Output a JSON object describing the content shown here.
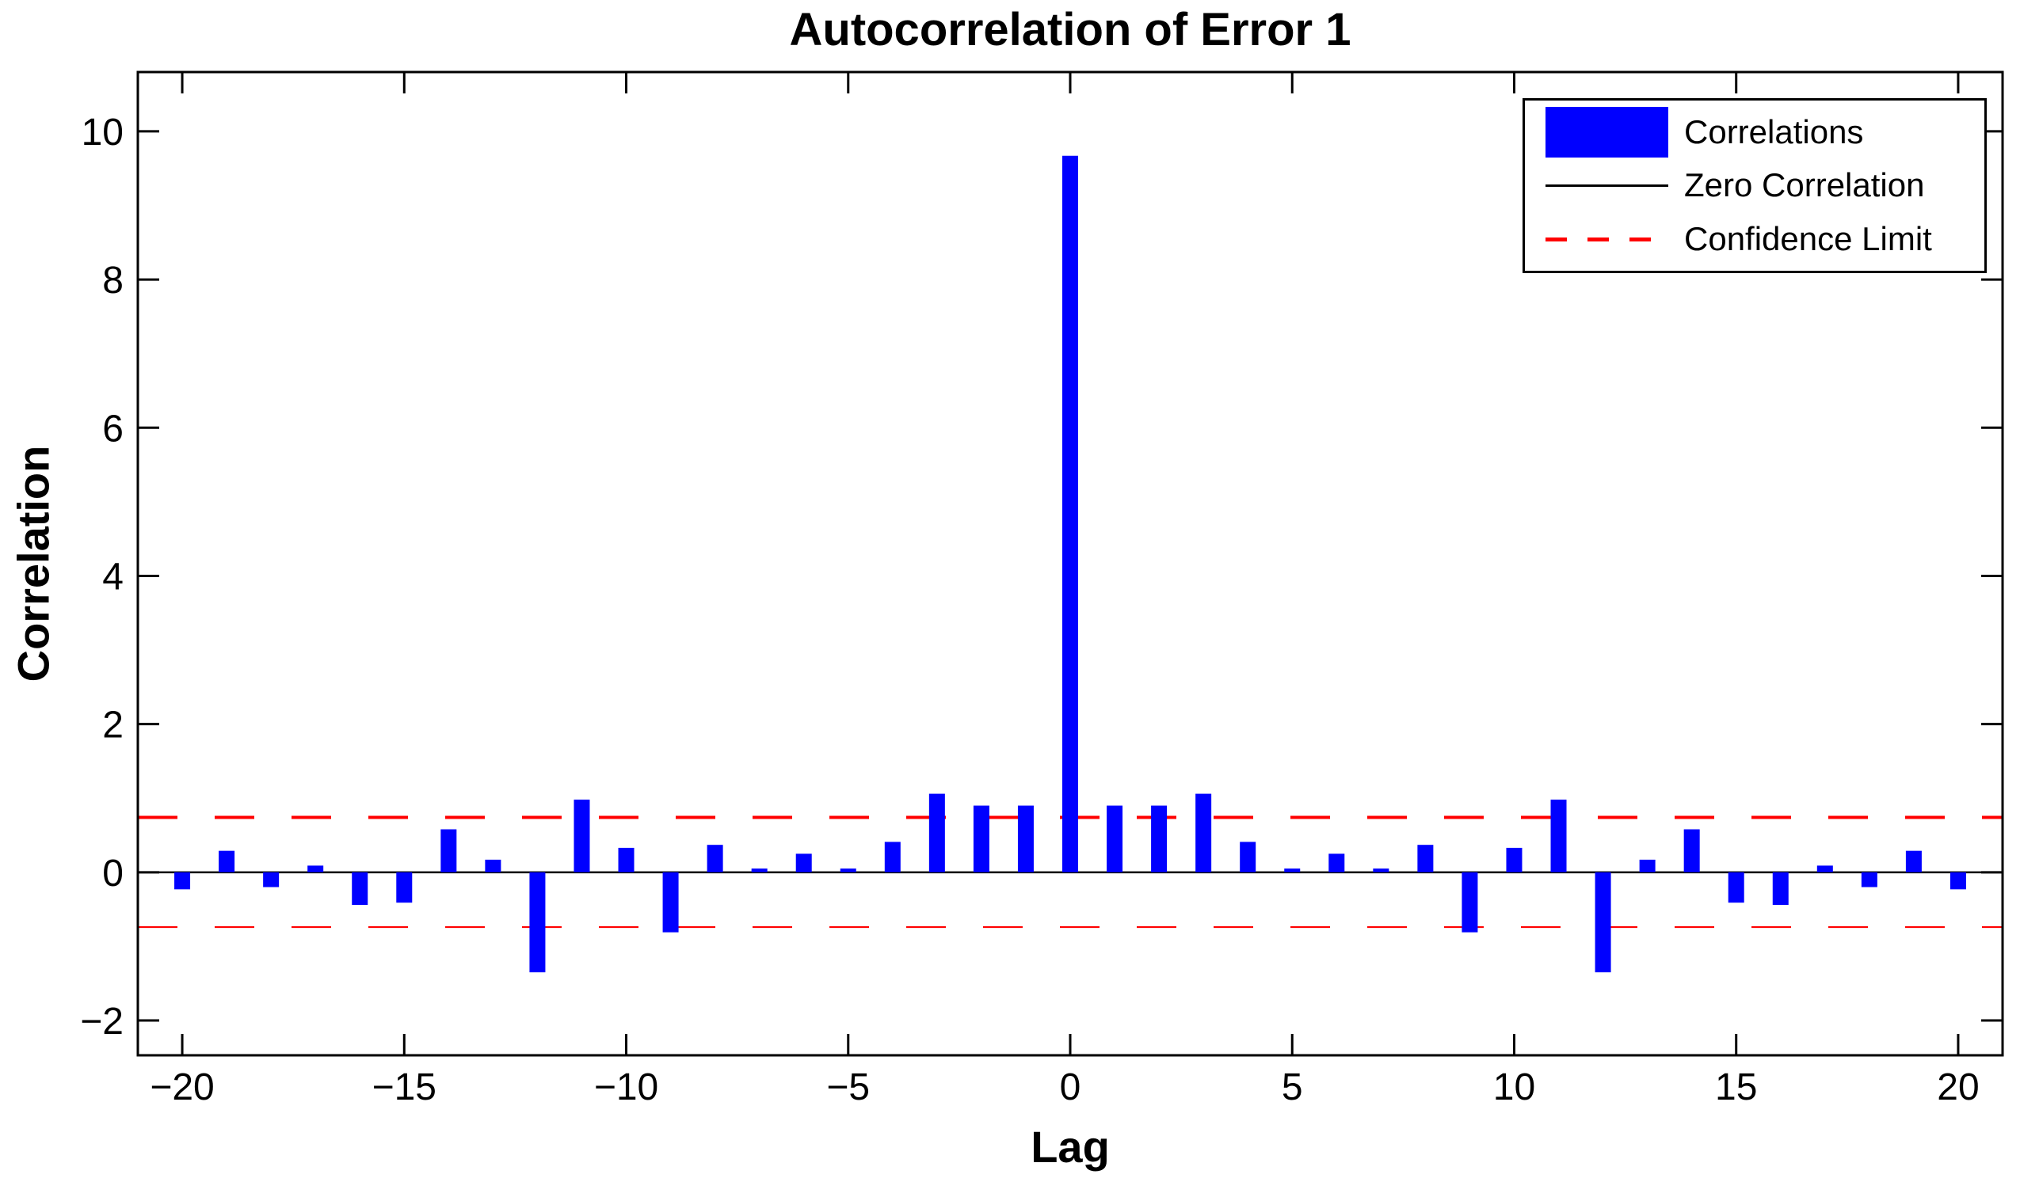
{
  "title": "Autocorrelation of Error 1",
  "x_axis_label": "Lag",
  "y_axis_label": "Correlation",
  "legend": {
    "position": "top-right",
    "items": [
      {
        "label": "Correlations",
        "swatch": "bar-swatch",
        "color": "#0000ff"
      },
      {
        "label": "Zero Correlation",
        "swatch": "line-swatch",
        "color": "#000000"
      },
      {
        "label": "Confidence Limit",
        "swatch": "dashed-line-swatch",
        "color": "#ff0000"
      }
    ]
  },
  "colors": {
    "bar": "#0000ff",
    "zero_line": "#000000",
    "confidence_limit": "#ff0000",
    "axis": "#000000",
    "background": "#ffffff"
  },
  "chart_data": {
    "type": "bar",
    "title": "Autocorrelation of Error 1",
    "xlabel": "Lag",
    "ylabel": "Correlation",
    "x": [
      -20,
      -19,
      -18,
      -17,
      -16,
      -15,
      -14,
      -13,
      -12,
      -11,
      -10,
      -9,
      -8,
      -7,
      -6,
      -5,
      -4,
      -3,
      -2,
      -1,
      0,
      1,
      2,
      3,
      4,
      5,
      6,
      7,
      8,
      9,
      10,
      11,
      12,
      13,
      14,
      15,
      16,
      17,
      18,
      19,
      20
    ],
    "values": [
      -0.23,
      0.29,
      -0.2,
      0.09,
      -0.44,
      -0.41,
      0.58,
      0.17,
      -1.35,
      0.98,
      0.33,
      -0.81,
      0.37,
      0.05,
      0.25,
      0.05,
      0.41,
      1.06,
      0.9,
      0.9,
      9.67,
      0.9,
      0.9,
      1.06,
      0.41,
      0.05,
      0.25,
      0.05,
      0.37,
      -0.81,
      0.33,
      0.98,
      -1.35,
      0.17,
      0.58,
      -0.41,
      -0.44,
      0.09,
      -0.2,
      0.29,
      -0.23
    ],
    "zero_line": 0,
    "confidence_limit_upper": 0.74,
    "confidence_limit_lower": -0.74,
    "xlim": [
      -21,
      21
    ],
    "ylim": [
      -2.47,
      10.8
    ],
    "xticks": [
      -20,
      -15,
      -10,
      -5,
      0,
      5,
      10,
      15,
      20
    ],
    "yticks": [
      -2,
      0,
      2,
      4,
      6,
      8,
      10
    ],
    "grid": false,
    "legend_position": "top-right"
  }
}
